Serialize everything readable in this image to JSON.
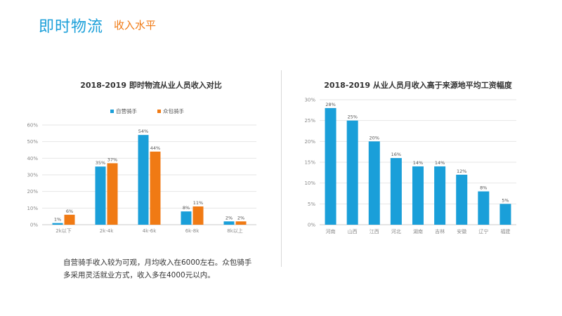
{
  "header": {
    "title": "即时物流",
    "subtitle": "收入水平"
  },
  "caption": {
    "line1": "自营骑手收入较为可观，月均收入在6000左右。众包骑手",
    "line2": "多采用灵活就业方式，收入多在4000元以内。"
  },
  "colors": {
    "blue": "#1a9fd9",
    "orange": "#f07a14",
    "grid": "#e6e6e6",
    "axis": "#c8c8c8"
  },
  "chart_data": [
    {
      "type": "bar",
      "title": "2018-2019 即时物流从业人员收入对比",
      "categories": [
        "2k以下",
        "2k-4k",
        "4k-6k",
        "6k-8k",
        "8k以上"
      ],
      "series": [
        {
          "name": "自营骑手",
          "values": [
            1,
            35,
            54,
            8,
            2
          ],
          "labels": [
            "1%",
            "35%",
            "54%",
            "8%",
            "2%"
          ]
        },
        {
          "name": "众包骑手",
          "values": [
            6,
            37,
            44,
            11,
            2
          ],
          "labels": [
            "6%",
            "37%",
            "44%",
            "11%",
            "2%"
          ]
        }
      ],
      "ylim": [
        0,
        60
      ],
      "yticks": [
        "0%",
        "10%",
        "20%",
        "30%",
        "40%",
        "50%",
        "60%"
      ],
      "xlabel": "",
      "ylabel": "",
      "legend": "top-center",
      "grid": true
    },
    {
      "type": "bar",
      "title": "2018-2019 从业人员月收入高于来源地平均工资幅度",
      "categories": [
        "河南",
        "山西",
        "江西",
        "河北",
        "湖南",
        "吉林",
        "安徽",
        "辽宁",
        "福建"
      ],
      "series": [
        {
          "name": "幅度",
          "values": [
            28,
            25,
            20,
            16,
            14,
            14,
            12,
            8,
            5
          ],
          "labels": [
            "28%",
            "25%",
            "20%",
            "16%",
            "14%",
            "14%",
            "12%",
            "8%",
            "5%"
          ]
        }
      ],
      "ylim": [
        0,
        30
      ],
      "yticks": [
        "0%",
        "5%",
        "10%",
        "15%",
        "20%",
        "25%",
        "30%"
      ],
      "xlabel": "",
      "ylabel": "",
      "grid": true
    }
  ]
}
